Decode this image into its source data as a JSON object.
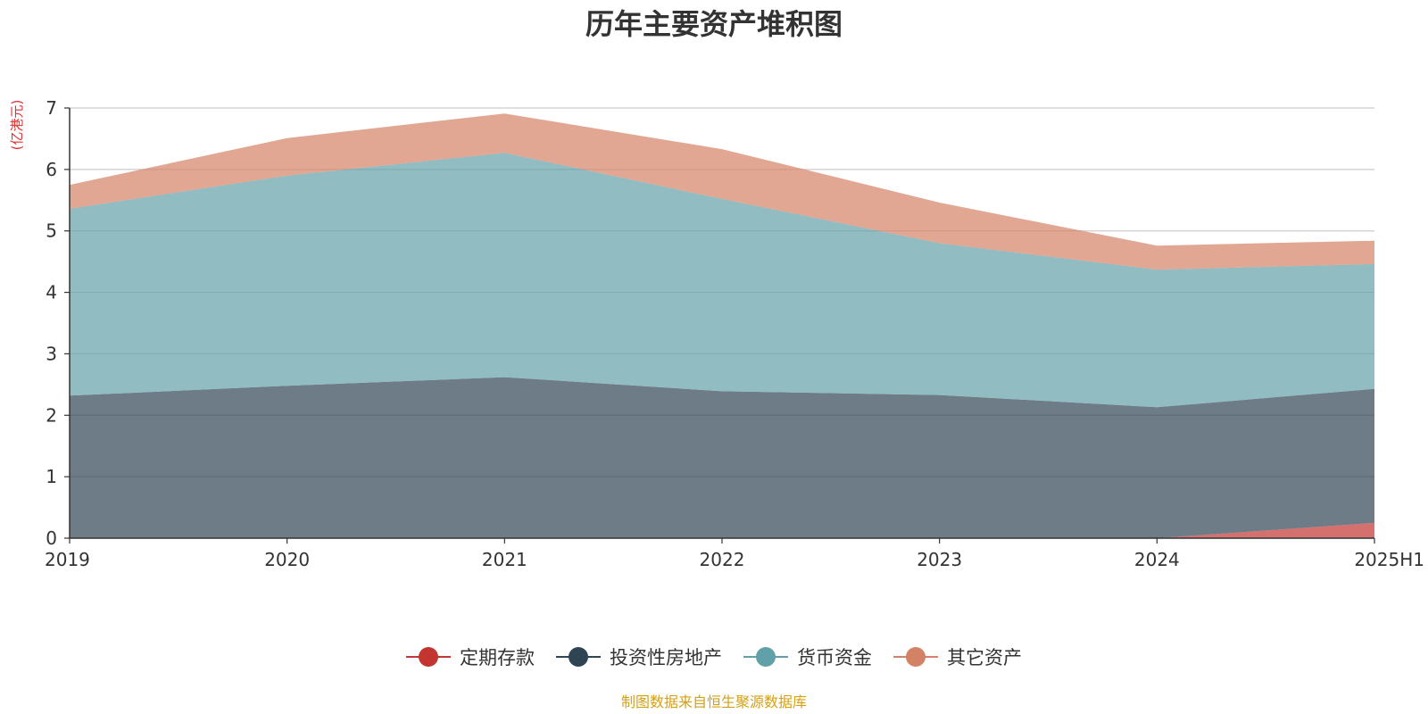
{
  "chart_data": {
    "type": "area",
    "stacked": true,
    "title": "历年主要资产堆积图",
    "unit_label": "(亿港元)",
    "x": [
      "2019",
      "2020",
      "2021",
      "2022",
      "2023",
      "2024",
      "2025H1"
    ],
    "ylim": [
      0,
      7
    ],
    "yticks": [
      "0",
      "1",
      "2",
      "3",
      "4",
      "5",
      "6",
      "7"
    ],
    "grid": true,
    "legend_position": "bottom-center",
    "series": [
      {
        "name": "定期存款",
        "color": "#c23531",
        "values": [
          0,
          0,
          0,
          0,
          0,
          0,
          0.25
        ]
      },
      {
        "name": "投资性房地产",
        "color": "#2f4554",
        "values": [
          2.32,
          2.48,
          2.62,
          2.39,
          2.33,
          2.13,
          2.18
        ]
      },
      {
        "name": "货币资金",
        "color": "#61a0a8",
        "values": [
          3.04,
          3.42,
          3.65,
          3.13,
          2.47,
          2.24,
          2.03
        ]
      },
      {
        "name": "其它资产",
        "color": "#d48265",
        "values": [
          0.39,
          0.61,
          0.64,
          0.81,
          0.66,
          0.39,
          0.38
        ]
      }
    ],
    "source": "制图数据来自恒生聚源数据库"
  }
}
